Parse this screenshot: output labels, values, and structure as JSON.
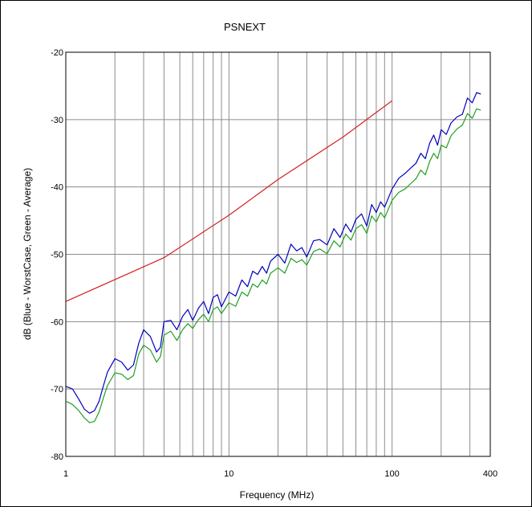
{
  "chart_data": {
    "type": "line",
    "title": "PSNEXT",
    "xlabel": "Frequency (MHz)",
    "ylabel": "dB (Blue - WorstCase, Green - Average)",
    "x_scale": "log",
    "xlim": [
      1,
      400
    ],
    "ylim": [
      -80,
      -20
    ],
    "grid": true,
    "x_ticks": [
      {
        "value": 1,
        "label": "1"
      },
      {
        "value": 10,
        "label": "10"
      },
      {
        "value": 100,
        "label": "100"
      },
      {
        "value": 400,
        "label": "400"
      }
    ],
    "y_ticks": [
      {
        "value": -20,
        "label": "-20"
      },
      {
        "value": -30,
        "label": "-30"
      },
      {
        "value": -40,
        "label": "-40"
      },
      {
        "value": -50,
        "label": "-50"
      },
      {
        "value": -60,
        "label": "-60"
      },
      {
        "value": -70,
        "label": "-70"
      },
      {
        "value": -80,
        "label": "-80"
      }
    ],
    "series": [
      {
        "color": "#d42020",
        "x": [
          1,
          4,
          10,
          20,
          50,
          100
        ],
        "y": [
          -57.0,
          -50.5,
          -44.2,
          -38.9,
          -32.6,
          -27.2
        ]
      },
      {
        "color": "#0000c0",
        "x": [
          1,
          1.1,
          1.2,
          1.3,
          1.4,
          1.5,
          1.6,
          1.7,
          1.8,
          2.0,
          2.2,
          2.4,
          2.6,
          2.8,
          3.0,
          3.3,
          3.6,
          3.8,
          4.0,
          4.4,
          4.8,
          5.2,
          5.6,
          6.0,
          6.5,
          7.0,
          7.5,
          8.0,
          8.5,
          9.0,
          10,
          11,
          12,
          13,
          14,
          15,
          16,
          17,
          18,
          20,
          22,
          24,
          26,
          28,
          30,
          33,
          36,
          40,
          44,
          48,
          52,
          56,
          60,
          65,
          70,
          75,
          80,
          85,
          90,
          100,
          110,
          120,
          130,
          140,
          150,
          160,
          170,
          180,
          190,
          200,
          215,
          230,
          250,
          270,
          290,
          310,
          330,
          350
        ],
        "y": [
          -69.6,
          -70.0,
          -71.5,
          -73.0,
          -73.6,
          -73.2,
          -71.8,
          -69.5,
          -67.5,
          -65.5,
          -66.0,
          -67.2,
          -66.4,
          -63.2,
          -61.2,
          -62.2,
          -64.5,
          -63.8,
          -60.0,
          -59.8,
          -61.2,
          -59.2,
          -58.2,
          -59.8,
          -58.0,
          -57.0,
          -58.8,
          -56.4,
          -56.0,
          -57.8,
          -55.6,
          -56.2,
          -53.8,
          -54.8,
          -52.5,
          -53.0,
          -51.8,
          -52.8,
          -51.0,
          -50.0,
          -51.3,
          -48.5,
          -49.5,
          -49.0,
          -50.4,
          -48.0,
          -47.8,
          -48.6,
          -46.2,
          -47.5,
          -45.5,
          -46.7,
          -44.8,
          -44.0,
          -45.8,
          -42.6,
          -43.8,
          -42.2,
          -43.0,
          -40.3,
          -38.7,
          -38.0,
          -37.2,
          -36.5,
          -35.0,
          -35.8,
          -33.5,
          -32.3,
          -33.8,
          -31.5,
          -32.2,
          -30.5,
          -29.6,
          -29.2,
          -26.8,
          -27.5,
          -26.0,
          -26.2
        ]
      },
      {
        "color": "#20a020",
        "x": [
          1,
          1.1,
          1.2,
          1.3,
          1.4,
          1.5,
          1.6,
          1.7,
          1.8,
          2.0,
          2.2,
          2.4,
          2.6,
          2.8,
          3.0,
          3.3,
          3.6,
          3.8,
          4.0,
          4.4,
          4.8,
          5.2,
          5.6,
          6.0,
          6.5,
          7.0,
          7.5,
          8.0,
          8.5,
          9.0,
          10,
          11,
          12,
          13,
          14,
          15,
          16,
          17,
          18,
          20,
          22,
          24,
          26,
          28,
          30,
          33,
          36,
          40,
          44,
          48,
          52,
          56,
          60,
          65,
          70,
          75,
          80,
          85,
          90,
          100,
          110,
          120,
          130,
          140,
          150,
          160,
          170,
          180,
          190,
          200,
          215,
          230,
          250,
          270,
          290,
          310,
          330,
          350
        ],
        "y": [
          -71.8,
          -72.3,
          -73.2,
          -74.3,
          -75.0,
          -74.8,
          -73.4,
          -71.3,
          -69.5,
          -67.6,
          -67.8,
          -68.6,
          -68.0,
          -64.8,
          -63.5,
          -64.2,
          -66.0,
          -65.2,
          -62.0,
          -61.4,
          -62.8,
          -61.2,
          -60.3,
          -61.0,
          -59.7,
          -58.9,
          -60.0,
          -58.2,
          -57.8,
          -58.8,
          -57.2,
          -57.7,
          -55.6,
          -56.2,
          -54.4,
          -54.9,
          -53.8,
          -54.4,
          -52.8,
          -52.0,
          -52.8,
          -50.6,
          -51.2,
          -50.8,
          -51.6,
          -49.6,
          -49.2,
          -49.9,
          -48.0,
          -48.9,
          -47.0,
          -47.9,
          -46.2,
          -45.6,
          -46.9,
          -44.3,
          -45.2,
          -43.8,
          -44.6,
          -42.0,
          -40.8,
          -40.3,
          -39.5,
          -38.8,
          -37.5,
          -38.2,
          -36.2,
          -35.0,
          -35.8,
          -33.8,
          -34.2,
          -32.4,
          -31.4,
          -30.8,
          -29.1,
          -29.8,
          -28.4,
          -28.6
        ]
      }
    ]
  }
}
